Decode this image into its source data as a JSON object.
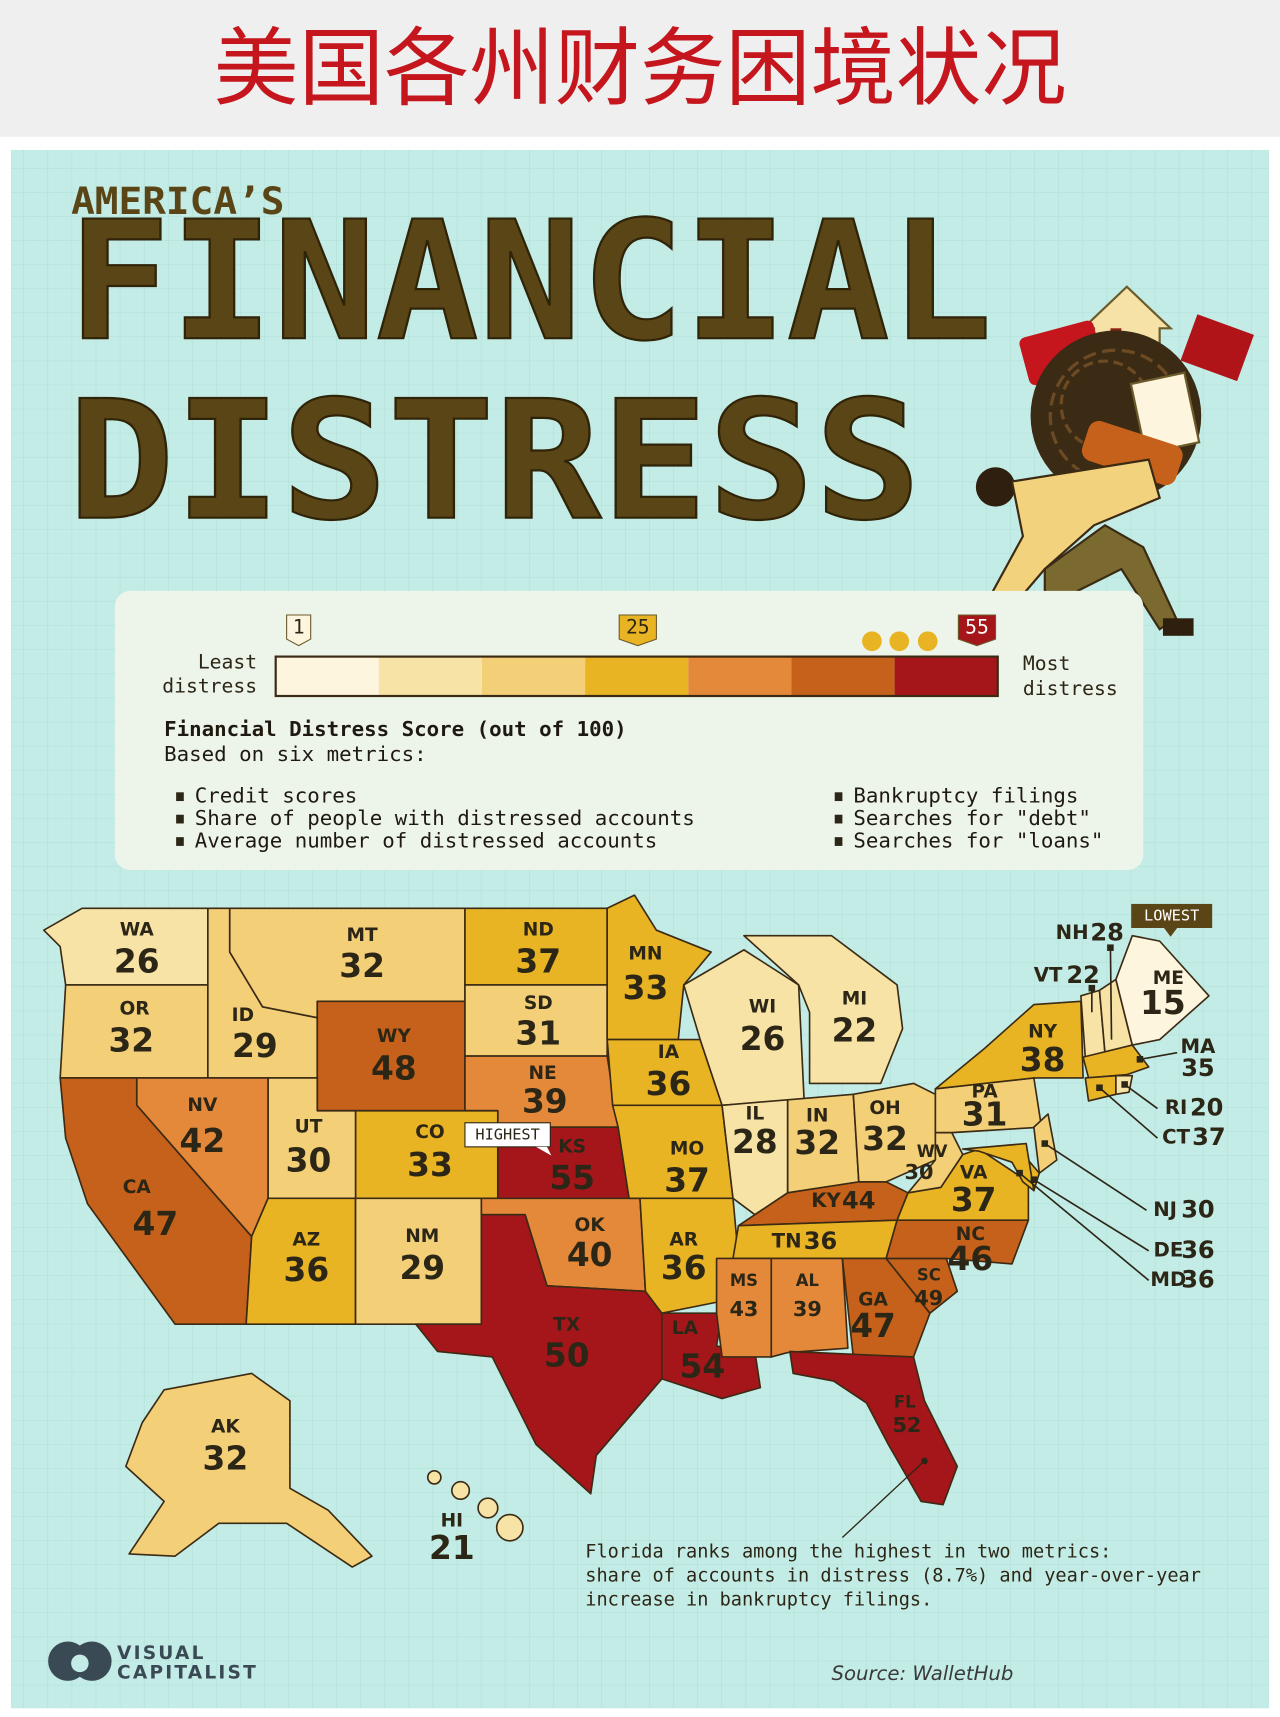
{
  "header": {
    "title": "美国各州财务困境状况"
  },
  "title": {
    "kicker": "AMERICA’S",
    "line1": "FINANCIAL",
    "line2": "DISTRESS"
  },
  "legend": {
    "ticks": [
      1,
      25,
      55
    ],
    "low_label": [
      "Least",
      "distress"
    ],
    "high_label": [
      "Most",
      "distress"
    ],
    "colors": [
      "#fdf5de",
      "#f7e3a6",
      "#f3cf78",
      "#e9b423",
      "#e4893a",
      "#c5611b",
      "#a5161b"
    ],
    "heading": "Financial Distress Score (out of 100)",
    "subheading": "Based on six metrics:",
    "metrics": [
      "Credit scores",
      "Share of people with distressed accounts",
      "Average number of distressed accounts",
      "Bankruptcy filings",
      "Searches for \"debt\"",
      "Searches for \"loans\""
    ]
  },
  "map": {
    "highest": "HIGHEST",
    "lowest": "LOWEST",
    "states": [
      {
        "abbr": "WA",
        "score": 26,
        "color": "#f7e3a6"
      },
      {
        "abbr": "OR",
        "score": 32,
        "color": "#f3cf78"
      },
      {
        "abbr": "ID",
        "score": 29,
        "color": "#f3cf78"
      },
      {
        "abbr": "MT",
        "score": 32,
        "color": "#f3cf78"
      },
      {
        "abbr": "WY",
        "score": 48,
        "color": "#c5611b"
      },
      {
        "abbr": "ND",
        "score": 37,
        "color": "#e9b423"
      },
      {
        "abbr": "SD",
        "score": 31,
        "color": "#f3cf78"
      },
      {
        "abbr": "NE",
        "score": 39,
        "color": "#e4893a"
      },
      {
        "abbr": "KS",
        "score": 55,
        "color": "#a5161b"
      },
      {
        "abbr": "CO",
        "score": 33,
        "color": "#e9b423"
      },
      {
        "abbr": "UT",
        "score": 30,
        "color": "#f3cf78"
      },
      {
        "abbr": "NV",
        "score": 42,
        "color": "#e4893a"
      },
      {
        "abbr": "CA",
        "score": 47,
        "color": "#c5611b"
      },
      {
        "abbr": "AZ",
        "score": 36,
        "color": "#e9b423"
      },
      {
        "abbr": "NM",
        "score": 29,
        "color": "#f3cf78"
      },
      {
        "abbr": "OK",
        "score": 40,
        "color": "#e4893a"
      },
      {
        "abbr": "TX",
        "score": 50,
        "color": "#a5161b"
      },
      {
        "abbr": "LA",
        "score": 54,
        "color": "#a5161b"
      },
      {
        "abbr": "MN",
        "score": 33,
        "color": "#e9b423"
      },
      {
        "abbr": "IA",
        "score": 36,
        "color": "#e9b423"
      },
      {
        "abbr": "MO",
        "score": 37,
        "color": "#e9b423"
      },
      {
        "abbr": "AR",
        "score": 36,
        "color": "#e9b423"
      },
      {
        "abbr": "WI",
        "score": 26,
        "color": "#f7e3a6"
      },
      {
        "abbr": "MI",
        "score": 22,
        "color": "#f7e3a6"
      },
      {
        "abbr": "IL",
        "score": 28,
        "color": "#f7e3a6"
      },
      {
        "abbr": "IN",
        "score": 32,
        "color": "#f3cf78"
      },
      {
        "abbr": "OH",
        "score": 32,
        "color": "#f3cf78"
      },
      {
        "abbr": "KY",
        "score": 44,
        "color": "#c5611b"
      },
      {
        "abbr": "TN",
        "score": 36,
        "color": "#e9b423"
      },
      {
        "abbr": "MS",
        "score": 43,
        "color": "#e4893a"
      },
      {
        "abbr": "AL",
        "score": 39,
        "color": "#e4893a"
      },
      {
        "abbr": "GA",
        "score": 47,
        "color": "#c5611b"
      },
      {
        "abbr": "SC",
        "score": 49,
        "color": "#c5611b"
      },
      {
        "abbr": "NC",
        "score": 46,
        "color": "#c5611b"
      },
      {
        "abbr": "VA",
        "score": 37,
        "color": "#e9b423"
      },
      {
        "abbr": "WV",
        "score": 30,
        "color": "#f3cf78"
      },
      {
        "abbr": "PA",
        "score": 31,
        "color": "#f3cf78"
      },
      {
        "abbr": "NY",
        "score": 38,
        "color": "#e9b423"
      },
      {
        "abbr": "NJ",
        "score": 30,
        "color": "#f3cf78"
      },
      {
        "abbr": "DE",
        "score": 36,
        "color": "#e9b423"
      },
      {
        "abbr": "MD",
        "score": 36,
        "color": "#e9b423"
      },
      {
        "abbr": "VT",
        "score": 22,
        "color": "#f7e3a6"
      },
      {
        "abbr": "NH",
        "score": 28,
        "color": "#f7e3a6"
      },
      {
        "abbr": "ME",
        "score": 15,
        "color": "#fdf5de"
      },
      {
        "abbr": "MA",
        "score": 35,
        "color": "#e9b423"
      },
      {
        "abbr": "CT",
        "score": 37,
        "color": "#e9b423"
      },
      {
        "abbr": "RI",
        "score": 20,
        "color": "#f7e3a6"
      },
      {
        "abbr": "FL",
        "score": 52,
        "color": "#a5161b"
      },
      {
        "abbr": "AK",
        "score": 32,
        "color": "#f3cf78"
      },
      {
        "abbr": "HI",
        "score": 21,
        "color": "#f7e3a6"
      }
    ]
  },
  "note": [
    "Florida ranks among the highest in two metrics:",
    "share of accounts in distress (8.7%) and year-over-year",
    "increase in bankruptcy filings."
  ],
  "brand": [
    "VISUAL",
    "CAPITALIST"
  ],
  "source": "Source: WalletHub"
}
